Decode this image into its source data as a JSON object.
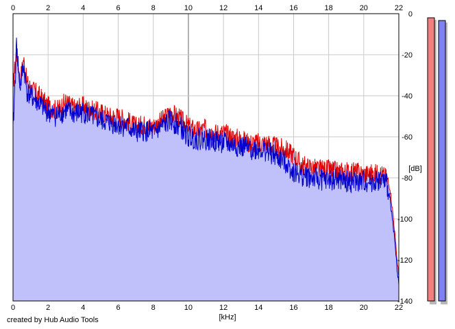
{
  "credit": "created by Hub Audio Tools",
  "colors": {
    "background": "#ffffff",
    "plot_fill": "#c0c0fb",
    "grid": "#c8c8c8",
    "left_channel": "#e00000",
    "right_channel": "#0000cc",
    "left_meter": "#f08080",
    "right_meter": "#8080f0"
  },
  "chart_data": {
    "type": "line",
    "title": "",
    "xlabel": "[kHz]",
    "ylabel": "[dB]",
    "xlim": [
      0,
      22
    ],
    "ylim": [
      -140,
      0
    ],
    "x_ticks": [
      "0",
      "2",
      "4",
      "6",
      "8",
      "10",
      "12",
      "14",
      "16",
      "18",
      "20",
      "22"
    ],
    "y_ticks": [
      "0",
      "-20",
      "-40",
      "-60",
      "-80",
      "-100",
      "-120",
      "-140"
    ],
    "grid": true,
    "legend": "none",
    "series": [
      {
        "color": "#e00000",
        "x": [
          0,
          0.2,
          0.4,
          0.6,
          0.8,
          1.0,
          1.5,
          2.0,
          2.5,
          3.0,
          3.5,
          4.0,
          4.5,
          5.0,
          5.5,
          6.0,
          6.5,
          7.0,
          7.5,
          8.0,
          8.5,
          9.0,
          9.5,
          10.0,
          10.5,
          11.0,
          11.5,
          12.0,
          12.5,
          13.0,
          13.5,
          14.0,
          14.5,
          15.0,
          15.5,
          16.0,
          16.5,
          17.0,
          17.5,
          18.0,
          18.5,
          19.0,
          19.5,
          20.0,
          20.5,
          21.0,
          21.3,
          21.5,
          21.7,
          21.9,
          22.0
        ],
        "y": [
          -35,
          -18,
          -33,
          -22,
          -34,
          -36,
          -40,
          -45,
          -47,
          -43,
          -46,
          -45,
          -47,
          -48,
          -50,
          -50,
          -52,
          -55,
          -54,
          -55,
          -52,
          -48,
          -51,
          -55,
          -57,
          -56,
          -58,
          -58,
          -60,
          -61,
          -63,
          -63,
          -63,
          -65,
          -66,
          -69,
          -74,
          -75,
          -76,
          -76,
          -77,
          -77,
          -77,
          -78,
          -78,
          -78,
          -80,
          -85,
          -100,
          -120,
          -128
        ]
      },
      {
        "color": "#0000cc",
        "x": [
          0,
          0.2,
          0.4,
          0.6,
          0.8,
          1.0,
          1.5,
          2.0,
          2.5,
          3.0,
          3.5,
          4.0,
          4.5,
          5.0,
          5.5,
          6.0,
          6.5,
          7.0,
          7.5,
          8.0,
          8.5,
          9.0,
          9.5,
          10.0,
          10.5,
          11.0,
          11.5,
          12.0,
          12.5,
          13.0,
          13.5,
          14.0,
          14.5,
          15.0,
          15.5,
          16.0,
          16.5,
          17.0,
          17.5,
          18.0,
          18.5,
          19.0,
          19.5,
          20.0,
          20.5,
          21.0,
          21.3,
          21.5,
          21.7,
          21.9,
          22.0
        ],
        "y": [
          -58,
          -15,
          -36,
          -25,
          -38,
          -40,
          -44,
          -48,
          -50,
          -47,
          -49,
          -48,
          -50,
          -52,
          -53,
          -54,
          -55,
          -58,
          -57,
          -58,
          -55,
          -52,
          -55,
          -60,
          -61,
          -61,
          -62,
          -63,
          -64,
          -65,
          -66,
          -66,
          -67,
          -70,
          -72,
          -77,
          -79,
          -80,
          -81,
          -81,
          -81,
          -82,
          -82,
          -82,
          -82,
          -81,
          -83,
          -90,
          -105,
          -124,
          -132
        ]
      }
    ]
  }
}
